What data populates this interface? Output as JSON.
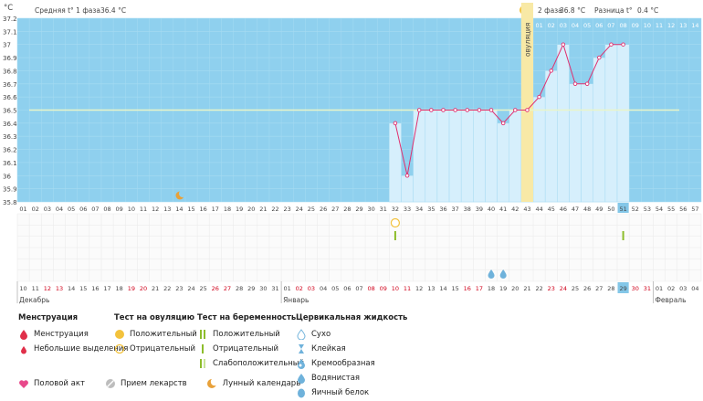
{
  "unit_label": "°C",
  "header": {
    "phase1": "Средняя t° 1 фаза",
    "phase1_value": "36.4 °C",
    "phase2": "2 фаза",
    "phase2_value": "36.8 °C",
    "diff": "Разница t°",
    "diff_value": "0.4 °C"
  },
  "ovulation_label": "овуляция",
  "month_labels": {
    "dec": "Декабрь",
    "jan": "Январь",
    "feb": "Февраль"
  },
  "cycle_days": [
    "01",
    "02",
    "03",
    "04",
    "05",
    "06",
    "07",
    "08",
    "09",
    "10",
    "11",
    "12",
    "13",
    "14",
    "15",
    "16",
    "17",
    "18",
    "19",
    "20",
    "21",
    "22",
    "23",
    "24",
    "25",
    "26",
    "27",
    "28",
    "29",
    "30",
    "31",
    "32",
    "33",
    "34",
    "35",
    "36",
    "37",
    "38",
    "39",
    "40",
    "41",
    "42",
    "43",
    "44",
    "45",
    "46",
    "47",
    "48",
    "49",
    "50",
    "51",
    "52",
    "53",
    "54",
    "55",
    "56",
    "57"
  ],
  "top_days": [
    "01",
    "02",
    "03",
    "04",
    "05",
    "06",
    "07",
    "08",
    "09",
    "10",
    "11",
    "12",
    "13",
    "14"
  ],
  "dates": [
    "10",
    "11",
    "12",
    "13",
    "14",
    "15",
    "16",
    "17",
    "18",
    "19",
    "20",
    "21",
    "22",
    "23",
    "24",
    "25",
    "26",
    "27",
    "28",
    "29",
    "30",
    "31",
    "01",
    "02",
    "03",
    "04",
    "05",
    "06",
    "07",
    "08",
    "09",
    "10",
    "11",
    "12",
    "13",
    "14",
    "15",
    "16",
    "17",
    "18",
    "19",
    "20",
    "21",
    "22",
    "23",
    "24",
    "25",
    "26",
    "27",
    "28",
    "29",
    "30",
    "31",
    "01",
    "02",
    "03",
    "04"
  ],
  "weekend_dates": [
    2,
    3,
    9,
    10,
    16,
    17,
    23,
    24,
    29,
    30,
    31,
    32,
    37,
    38,
    44,
    45,
    51,
    52
  ],
  "chart_data": {
    "type": "line",
    "xlabel": "",
    "ylabel": "°C",
    "ylim": [
      35.8,
      37.2
    ],
    "y_ticks": [
      "35.8",
      "35.9",
      "36",
      "36.1",
      "36.2",
      "36.3",
      "36.4",
      "36.5",
      "36.6",
      "36.7",
      "36.8",
      "36.9",
      "37",
      "37.1",
      "37.2"
    ],
    "coverline": 36.5,
    "ovulation_day": 43,
    "today_day": 51,
    "series": [
      {
        "x": [
          32,
          33,
          34,
          35,
          36,
          37,
          38,
          39,
          40,
          41,
          42,
          43,
          44,
          45,
          46,
          47,
          48,
          49,
          50,
          51
        ],
        "y": [
          36.4,
          36.0,
          36.5,
          36.5,
          36.5,
          36.5,
          36.5,
          36.5,
          36.5,
          36.4,
          36.5,
          36.5,
          36.6,
          36.8,
          37.0,
          36.7,
          36.7,
          36.9,
          37.0,
          37.0
        ]
      }
    ]
  },
  "markers": {
    "ovulation_test_negative_day": 32,
    "pregnancy_test_positive_days": [
      32,
      51
    ],
    "cervical_water_days": [
      40,
      41
    ]
  },
  "legend": {
    "menstruation": {
      "title": "Менструация",
      "items": [
        "Менструация",
        "Небольшие выделения"
      ]
    },
    "ovulation_test": {
      "title": "Тест на овуляцию",
      "items": [
        "Положительный",
        "Отрицательный"
      ]
    },
    "pregnancy_test": {
      "title": "Тест на беременность",
      "items": [
        "Положительный",
        "Отрицательный",
        "Слабоположительный"
      ]
    },
    "cervical": {
      "title": "Цервикальная жидкость",
      "items": [
        "Сухо",
        "Клейкая",
        "Кремообразная",
        "Водянистая",
        "Яичный белок"
      ]
    },
    "bottom": [
      "Половой акт",
      "Прием лекарств",
      "Лунный календарь"
    ]
  },
  "colors": {
    "plot_bg": "#8fd0ee",
    "bar_fill": "#d6effc",
    "line": "#e0306f",
    "coverline": "#eaf5c8",
    "ovulation": "#f8e9a6",
    "today": "#84c7e8",
    "weekend": "#d0021b",
    "pregnancy": "#8dbd2b"
  }
}
